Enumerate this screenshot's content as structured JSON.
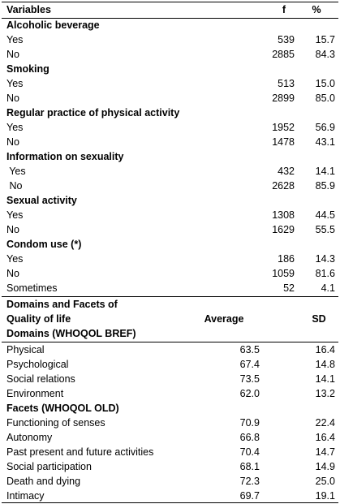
{
  "table1": {
    "header": [
      "Variables",
      "f",
      "%"
    ],
    "sections": [
      {
        "title": "Alcoholic beverage",
        "rows": [
          [
            "Yes",
            "539",
            "15.7"
          ],
          [
            "No",
            "2885",
            "84.3"
          ]
        ]
      },
      {
        "title": "Smoking",
        "rows": [
          [
            "Yes",
            "513",
            "15.0"
          ],
          [
            "No",
            "2899",
            "85.0"
          ]
        ]
      },
      {
        "title": "Regular practice of physical activity",
        "rows": [
          [
            "Yes",
            "1952",
            "56.9"
          ],
          [
            "No",
            "1478",
            "43.1"
          ]
        ]
      },
      {
        "title": "Information on sexuality",
        "rows": [
          [
            " Yes",
            "432",
            "14.1"
          ],
          [
            " No",
            "2628",
            "85.9"
          ]
        ]
      },
      {
        "title": "Sexual activity",
        "rows": [
          [
            "Yes",
            "1308",
            "44.5"
          ],
          [
            "No",
            "1629",
            "55.5"
          ]
        ]
      },
      {
        "title": "Condom use (*)",
        "rows": [
          [
            "Yes",
            "186",
            "14.3"
          ],
          [
            "No",
            "1059",
            "81.6"
          ],
          [
            "Sometimes",
            "52",
            "4.1"
          ]
        ]
      }
    ]
  },
  "table2": {
    "header": {
      "label": [
        "Domains and Facets of",
        "Quality of life"
      ],
      "average": "Average",
      "sd": "SD"
    },
    "sections": [
      {
        "title": "Domains (WHOQOL BREF)",
        "rows": [
          [
            "Physical",
            "63.5",
            "16.4"
          ],
          [
            "Psychological",
            "67.4",
            "14.8"
          ],
          [
            "Social relations",
            "73.5",
            "14.1"
          ],
          [
            "Environment",
            "62.0",
            "13.2"
          ]
        ]
      },
      {
        "title": "Facets (WHOQOL OLD)",
        "rows": [
          [
            "Functioning of senses",
            "70.9",
            "22.4"
          ],
          [
            "Autonomy",
            "66.8",
            "16.4"
          ],
          [
            "Past present and future activities",
            "70.4",
            "14.7"
          ],
          [
            "Social participation",
            "68.1",
            "14.9"
          ],
          [
            "Death and dying",
            "72.3",
            "25.0"
          ],
          [
            "Intimacy",
            "69.7",
            "19.1"
          ]
        ]
      }
    ]
  }
}
